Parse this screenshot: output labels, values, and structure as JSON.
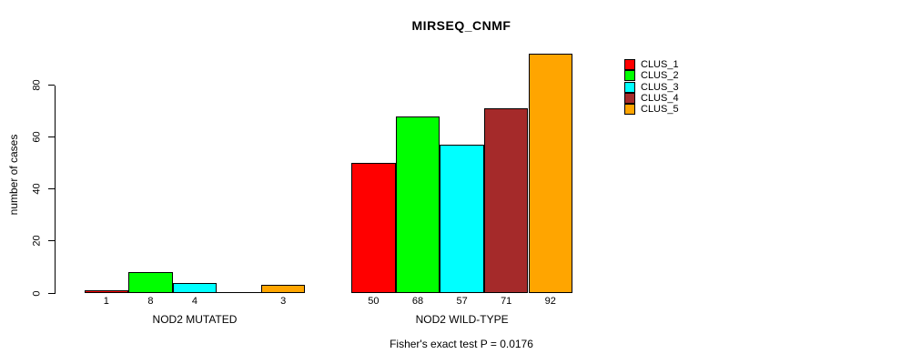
{
  "chart_data": {
    "type": "bar",
    "beside": true,
    "title": "MIRSEQ_CNMF",
    "ylabel": "number of cases",
    "xlabel": "",
    "categories": [
      "NOD2 MUTATED",
      "NOD2 WILD-TYPE"
    ],
    "series": [
      {
        "name": "CLUS_1",
        "color": "#ff0000",
        "values": [
          1,
          50
        ]
      },
      {
        "name": "CLUS_2",
        "color": "#00ff00",
        "values": [
          8,
          68
        ]
      },
      {
        "name": "CLUS_3",
        "color": "#00ffff",
        "values": [
          4,
          57
        ]
      },
      {
        "name": "CLUS_4",
        "color": "#a52a2a",
        "values": [
          0,
          71
        ]
      },
      {
        "name": "CLUS_5",
        "color": "#ffa500",
        "values": [
          3,
          92
        ]
      }
    ],
    "bar_value_labels": [
      [
        "1",
        "8",
        "4",
        "",
        "3"
      ],
      [
        "50",
        "68",
        "57",
        "71",
        "92"
      ]
    ],
    "yticks": [
      "0",
      "20",
      "40",
      "60",
      "80"
    ],
    "ylim": [
      0,
      80
    ],
    "grid": false,
    "legend": {
      "position": "right",
      "entries": [
        "CLUS_1",
        "CLUS_2",
        "CLUS_3",
        "CLUS_4",
        "CLUS_5"
      ]
    },
    "annotation": "Fisher's exact test P = 0.0176",
    "colors": {
      "axis": "#000000",
      "bar_border": "#000000",
      "background": "#ffffff",
      "text": "#000000"
    }
  }
}
